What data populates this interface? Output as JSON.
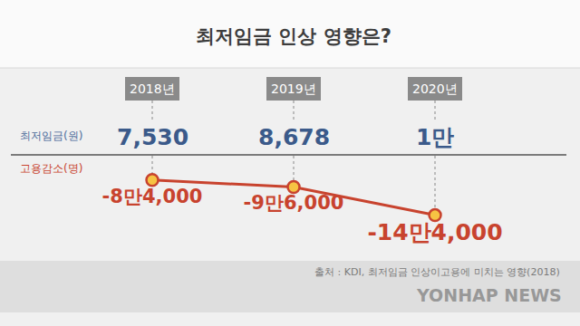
{
  "chart_data": {
    "type": "line",
    "title": "최저임금 인상 영향은?",
    "categories": [
      "2018년",
      "2019년",
      "2020년"
    ],
    "minimum_wage": {
      "name": "최저임금(원)",
      "labels": [
        "7,530",
        "8,678",
        "1만"
      ]
    },
    "series": [
      {
        "name": "고용감소(명)",
        "color": "#c8432e",
        "marker": "circle",
        "values": [
          -84000,
          -96000,
          -144000
        ],
        "value_labels": [
          "-8만4,000",
          "-9만6,000",
          "-14만4,000"
        ]
      }
    ],
    "ylim": [
      -225000,
      -55000
    ],
    "grid": false,
    "tick_labels": "x",
    "data_labels": true,
    "source": "출처 : KDI, 최저임금 인상이고용에 미치는 영향(2018)",
    "watermark": "YONHAP NEWS"
  }
}
